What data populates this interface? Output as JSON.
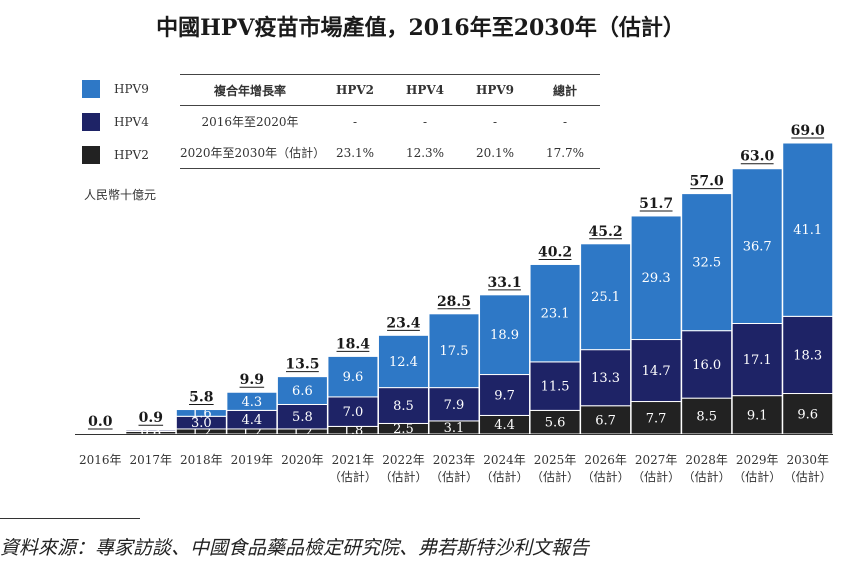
{
  "title": "中國HPV疫苗市場產值，2016年至2030年（估計）",
  "legend": [
    {
      "label": "HPV9",
      "color": "#2E78C6"
    },
    {
      "label": "HPV4",
      "color": "#1E2366"
    },
    {
      "label": "HPV2",
      "color": "#222222"
    }
  ],
  "cagr_table": {
    "headers": [
      "複合年增長率",
      "HPV2",
      "HPV4",
      "HPV9",
      "總計"
    ],
    "rows": [
      [
        "2016年至2020年",
        "-",
        "-",
        "-",
        "-"
      ],
      [
        "2020年至2030年（估計）",
        "23.1%",
        "12.3%",
        "20.1%",
        "17.7%"
      ]
    ]
  },
  "unit_label": "人民幣十億元",
  "source": "資料來源：專家訪談、中國食品藥品檢定研究院、弗若斯特沙利文報告",
  "chart_data": {
    "type": "bar",
    "stacked": true,
    "categories": [
      [
        "2016年"
      ],
      [
        "2017年"
      ],
      [
        "2018年"
      ],
      [
        "2019年"
      ],
      [
        "2020年"
      ],
      [
        "2021年",
        "（估計）"
      ],
      [
        "2022年",
        "（估計）"
      ],
      [
        "2023年",
        "（估計）"
      ],
      [
        "2024年",
        "（估計）"
      ],
      [
        "2025年",
        "（估計）"
      ],
      [
        "2026年",
        "（估計）"
      ],
      [
        "2027年",
        "（估計）"
      ],
      [
        "2028年",
        "（估計）"
      ],
      [
        "2029年",
        "（估計）"
      ],
      [
        "2030年",
        "（估計）"
      ]
    ],
    "series": [
      {
        "name": "HPV2",
        "color": "#222222",
        "values": [
          0,
          0.6,
          1.2,
          1.2,
          1.2,
          1.8,
          2.5,
          3.1,
          4.4,
          5.6,
          6.7,
          7.7,
          8.5,
          9.1,
          9.6
        ]
      },
      {
        "name": "HPV4",
        "color": "#1E2366",
        "values": [
          0,
          0.3,
          3.0,
          4.4,
          5.8,
          7.0,
          8.5,
          7.9,
          9.7,
          11.5,
          13.3,
          14.7,
          16.0,
          17.1,
          18.3
        ]
      },
      {
        "name": "HPV9",
        "color": "#2E78C6",
        "values": [
          0,
          0,
          1.6,
          4.3,
          6.6,
          9.6,
          12.4,
          17.5,
          18.9,
          23.1,
          25.1,
          29.3,
          32.5,
          36.7,
          41.1
        ]
      }
    ],
    "segment_labels": [
      [
        null,
        null,
        null
      ],
      [
        "0.6",
        "0.3",
        null
      ],
      [
        "1.2",
        "3.0",
        "1.6"
      ],
      [
        "1.2",
        "4.4",
        "4.3"
      ],
      [
        "1.2",
        "5.8",
        "6.6"
      ],
      [
        "1.8",
        "7.0",
        "9.6"
      ],
      [
        "2.5",
        "8.5",
        "12.4"
      ],
      [
        "3.1",
        "7.9",
        "17.5"
      ],
      [
        "4.4",
        "9.7",
        "18.9"
      ],
      [
        "5.6",
        "11.5",
        "23.1"
      ],
      [
        "6.7",
        "13.3",
        "25.1"
      ],
      [
        "7.7",
        "14.7",
        "29.3"
      ],
      [
        "8.5",
        "16.0",
        "32.5"
      ],
      [
        "9.1",
        "17.1",
        "36.7"
      ],
      [
        "9.6",
        "18.3",
        "41.1"
      ]
    ],
    "totals": [
      "0.0",
      "0.9",
      "5.8",
      "9.9",
      "13.5",
      "18.4",
      "23.4",
      "28.5",
      "33.1",
      "40.2",
      "45.2",
      "51.7",
      "57.0",
      "63.0",
      "69.0"
    ],
    "ylabel": "人民幣十億元",
    "ylim": [
      0,
      69.0
    ]
  }
}
